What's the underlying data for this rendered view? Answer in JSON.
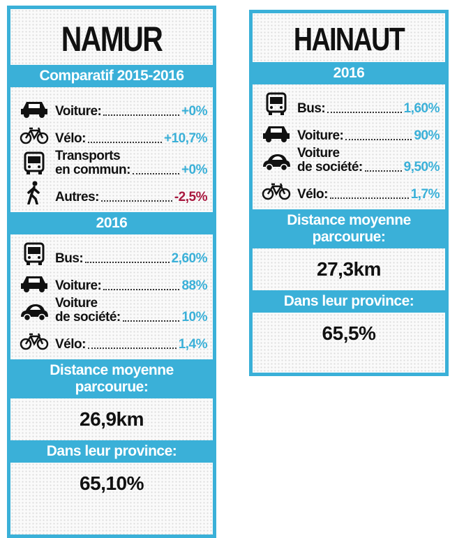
{
  "panels": [
    {
      "title": "NAMUR",
      "value_color": "#3ab0d8",
      "sections": [
        {
          "heading": "Comparatif 2015-2016",
          "items": [
            {
              "icon": "car",
              "label": "Voiture:",
              "value": "+0%"
            },
            {
              "icon": "bike",
              "label": "Vélo:",
              "value": "+10,7%"
            },
            {
              "icon": "bus",
              "label": [
                "Transports",
                "en commun:"
              ],
              "value": "+0%"
            },
            {
              "icon": "walk",
              "label": "Autres:",
              "value": "-2,5%",
              "color": "#a8173e"
            }
          ]
        },
        {
          "heading": "2016",
          "items": [
            {
              "icon": "bus",
              "label": "Bus:",
              "value": "2,60%"
            },
            {
              "icon": "car",
              "label": "Voiture:",
              "value": "88%"
            },
            {
              "icon": "car2",
              "label": [
                "Voiture",
                "de société:"
              ],
              "value": "10%"
            },
            {
              "icon": "bike",
              "label": "Vélo:",
              "value": "1,4%"
            }
          ]
        },
        {
          "heading": [
            "Distance moyenne",
            "parcourue:"
          ],
          "value": "26,9km"
        },
        {
          "heading": "Dans leur province:",
          "value": "65,10%"
        }
      ]
    },
    {
      "title": "HAINAUT",
      "value_color": "#3ab0d8",
      "sections": [
        {
          "heading": "2016",
          "items": [
            {
              "icon": "bus",
              "label": "Bus:",
              "value": "1,60%"
            },
            {
              "icon": "car",
              "label": "Voiture:",
              "value": "90%"
            },
            {
              "icon": "car2",
              "label": [
                "Voiture",
                "de société:"
              ],
              "value": "9,50%"
            },
            {
              "icon": "bike",
              "label": "Vélo:",
              "value": "1,7%"
            }
          ]
        },
        {
          "heading": [
            "Distance moyenne",
            "parcourue:"
          ],
          "value": "27,3km"
        },
        {
          "heading": "Dans leur province:",
          "value": "65,5%"
        }
      ]
    }
  ]
}
